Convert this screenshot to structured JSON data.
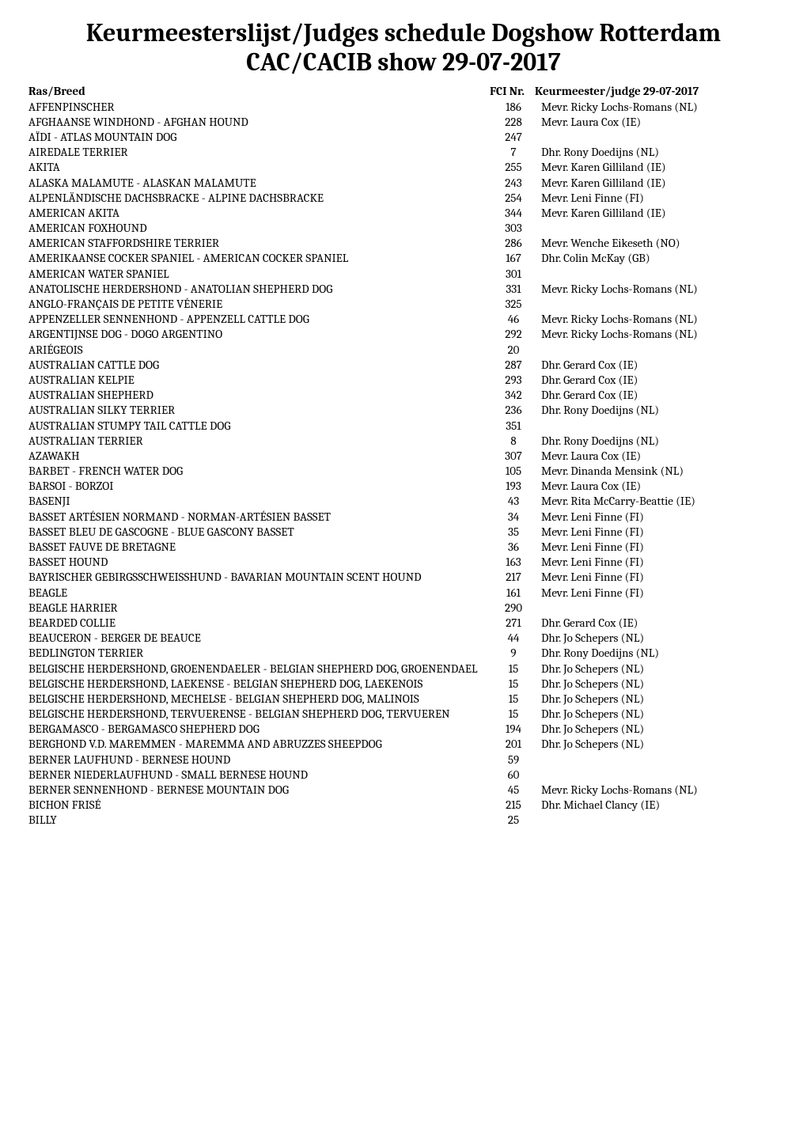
{
  "title_line1": "Keurmeesterslijst/Judges schedule Dogshow Rotterdam",
  "title_line2": "CAC/CACIB show 29-07-2017",
  "headers": {
    "breed": "Ras/Breed",
    "fci": "FCI Nr.",
    "judge": "Keurmeester/judge 29-07-2017"
  },
  "rows": [
    {
      "breed": "AFFENPINSCHER",
      "fci": "186",
      "judge": "Mevr. Ricky Lochs-Romans (NL)"
    },
    {
      "breed": "AFGHAANSE WINDHOND - AFGHAN HOUND",
      "fci": "228",
      "judge": "Mevr. Laura Cox (IE)"
    },
    {
      "breed": "AÏDI - ATLAS MOUNTAIN DOG",
      "fci": "247",
      "judge": ""
    },
    {
      "breed": "AIREDALE TERRIER",
      "fci": "7",
      "judge": "Dhr. Rony Doedijns (NL)"
    },
    {
      "breed": "AKITA",
      "fci": "255",
      "judge": "Mevr. Karen Gilliland (IE)"
    },
    {
      "breed": "ALASKA MALAMUTE - ALASKAN MALAMUTE",
      "fci": "243",
      "judge": "Mevr. Karen Gilliland (IE)"
    },
    {
      "breed": "ALPENLÄNDISCHE DACHSBRACKE - ALPINE DACHSBRACKE",
      "fci": "254",
      "judge": "Mevr. Leni Finne (FI)"
    },
    {
      "breed": "AMERICAN AKITA",
      "fci": "344",
      "judge": "Mevr. Karen Gilliland (IE)"
    },
    {
      "breed": "AMERICAN FOXHOUND",
      "fci": "303",
      "judge": ""
    },
    {
      "breed": "AMERICAN STAFFORDSHIRE TERRIER",
      "fci": "286",
      "judge": "Mevr. Wenche Eikeseth (NO)"
    },
    {
      "breed": "AMERIKAANSE COCKER SPANIEL - AMERICAN COCKER SPANIEL",
      "fci": "167",
      "judge": "Dhr. Colin McKay (GB)"
    },
    {
      "breed": "AMERICAN WATER SPANIEL",
      "fci": "301",
      "judge": ""
    },
    {
      "breed": "ANATOLISCHE HERDERSHOND - ANATOLIAN SHEPHERD DOG",
      "fci": "331",
      "judge": "Mevr. Ricky Lochs-Romans (NL)"
    },
    {
      "breed": "ANGLO-FRANÇAIS DE PETITE VÉNERIE",
      "fci": "325",
      "judge": ""
    },
    {
      "breed": "APPENZELLER SENNENHOND - APPENZELL CATTLE DOG",
      "fci": "46",
      "judge": "Mevr. Ricky Lochs-Romans (NL)"
    },
    {
      "breed": "ARGENTIJNSE DOG - DOGO ARGENTINO",
      "fci": "292",
      "judge": "Mevr. Ricky Lochs-Romans (NL)"
    },
    {
      "breed": "ARIÉGEOIS",
      "fci": "20",
      "judge": ""
    },
    {
      "breed": "AUSTRALIAN CATTLE DOG",
      "fci": "287",
      "judge": "Dhr. Gerard Cox (IE)"
    },
    {
      "breed": "AUSTRALIAN KELPIE",
      "fci": "293",
      "judge": "Dhr. Gerard Cox (IE)"
    },
    {
      "breed": "AUSTRALIAN SHEPHERD",
      "fci": "342",
      "judge": "Dhr. Gerard Cox (IE)"
    },
    {
      "breed": "AUSTRALIAN SILKY TERRIER",
      "fci": "236",
      "judge": "Dhr. Rony Doedijns (NL)"
    },
    {
      "breed": "AUSTRALIAN STUMPY TAIL CATTLE DOG",
      "fci": "351",
      "judge": ""
    },
    {
      "breed": "AUSTRALIAN TERRIER",
      "fci": "8",
      "judge": "Dhr. Rony Doedijns (NL)"
    },
    {
      "breed": "AZAWAKH",
      "fci": "307",
      "judge": "Mevr. Laura Cox (IE)"
    },
    {
      "breed": "BARBET - FRENCH WATER DOG",
      "fci": "105",
      "judge": "Mevr. Dinanda Mensink (NL)"
    },
    {
      "breed": "BARSOI - BORZOI",
      "fci": "193",
      "judge": "Mevr. Laura Cox (IE)"
    },
    {
      "breed": "BASENJI",
      "fci": "43",
      "judge": "Mevr. Rita McCarry-Beattie (IE)"
    },
    {
      "breed": "BASSET ARTÉSIEN NORMAND - NORMAN-ARTÉSIEN BASSET",
      "fci": "34",
      "judge": "Mevr. Leni Finne (FI)"
    },
    {
      "breed": "BASSET BLEU DE GASCOGNE - BLUE GASCONY BASSET",
      "fci": "35",
      "judge": "Mevr. Leni Finne (FI)"
    },
    {
      "breed": "BASSET FAUVE DE BRETAGNE",
      "fci": "36",
      "judge": "Mevr. Leni Finne (FI)"
    },
    {
      "breed": "BASSET HOUND",
      "fci": "163",
      "judge": "Mevr. Leni Finne (FI)"
    },
    {
      "breed": "BAYRISCHER GEBIRGSSCHWEISSHUND - BAVARIAN MOUNTAIN SCENT HOUND",
      "fci": "217",
      "judge": "Mevr. Leni Finne (FI)"
    },
    {
      "breed": "BEAGLE",
      "fci": "161",
      "judge": "Mevr. Leni Finne (FI)"
    },
    {
      "breed": "BEAGLE HARRIER",
      "fci": "290",
      "judge": ""
    },
    {
      "breed": "BEARDED COLLIE",
      "fci": "271",
      "judge": "Dhr. Gerard Cox (IE)"
    },
    {
      "breed": "BEAUCERON - BERGER DE BEAUCE",
      "fci": "44",
      "judge": "Dhr. Jo Schepers (NL)"
    },
    {
      "breed": "BEDLINGTON TERRIER",
      "fci": "9",
      "judge": "Dhr. Rony Doedijns (NL)"
    },
    {
      "breed": "BELGISCHE HERDERSHOND, GROENENDAELER - BELGIAN SHEPHERD DOG, GROENENDAEL",
      "fci": "15",
      "judge": "Dhr. Jo Schepers (NL)"
    },
    {
      "breed": "BELGISCHE HERDERSHOND, LAEKENSE - BELGIAN SHEPHERD DOG, LAEKENOIS",
      "fci": "15",
      "judge": "Dhr. Jo Schepers (NL)"
    },
    {
      "breed": "BELGISCHE HERDERSHOND, MECHELSE - BELGIAN SHEPHERD DOG, MALINOIS",
      "fci": "15",
      "judge": "Dhr. Jo Schepers (NL)"
    },
    {
      "breed": "BELGISCHE HERDERSHOND, TERVUERENSE - BELGIAN SHEPHERD DOG, TERVUEREN",
      "fci": "15",
      "judge": "Dhr. Jo Schepers (NL)"
    },
    {
      "breed": "BERGAMASCO - BERGAMASCO SHEPHERD DOG",
      "fci": "194",
      "judge": "Dhr. Jo Schepers (NL)"
    },
    {
      "breed": "BERGHOND V.D. MAREMMEN - MAREMMA AND ABRUZZES SHEEPDOG",
      "fci": "201",
      "judge": "Dhr. Jo Schepers (NL)"
    },
    {
      "breed": "BERNER LAUFHUND - BERNESE HOUND",
      "fci": "59",
      "judge": ""
    },
    {
      "breed": "BERNER NIEDERLAUFHUND - SMALL BERNESE HOUND",
      "fci": "60",
      "judge": ""
    },
    {
      "breed": "BERNER SENNENHOND - BERNESE MOUNTAIN DOG",
      "fci": "45",
      "judge": "Mevr. Ricky Lochs-Romans (NL)"
    },
    {
      "breed": "BICHON FRISÉ",
      "fci": "215",
      "judge": "Dhr. Michael Clancy (IE)"
    },
    {
      "breed": "BILLY",
      "fci": "25",
      "judge": ""
    }
  ]
}
